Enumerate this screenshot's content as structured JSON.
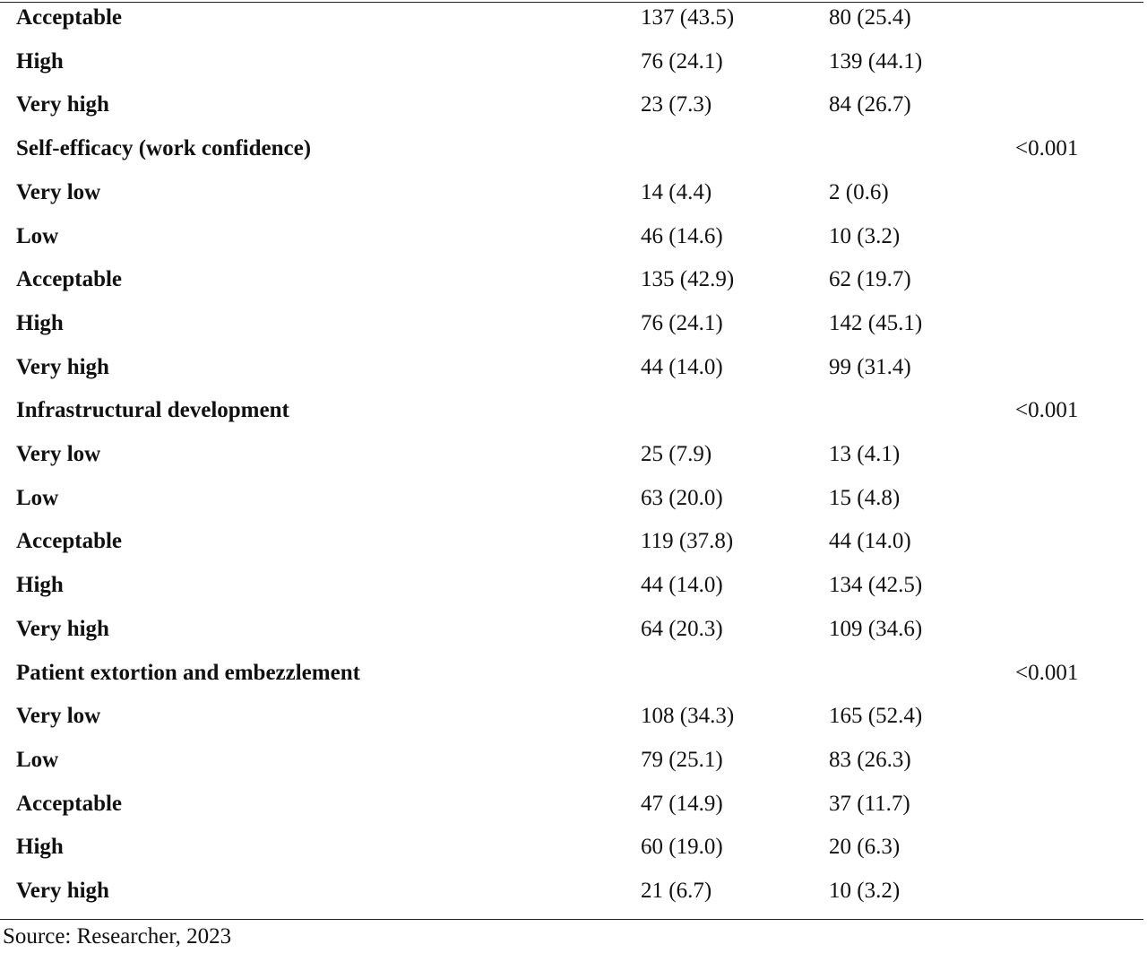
{
  "table": {
    "rows": [
      {
        "label": "Acceptable",
        "col1": "137 (43.5)",
        "col2": "80 (25.4)",
        "p": ""
      },
      {
        "label": "High",
        "col1": "76 (24.1)",
        "col2": "139 (44.1)",
        "p": ""
      },
      {
        "label": "Very high",
        "col1": "23 (7.3)",
        "col2": "84 (26.7)",
        "p": ""
      },
      {
        "label": "Self-efficacy (work confidence)",
        "col1": "",
        "col2": "",
        "p": "<0.001"
      },
      {
        "label": "Very low",
        "col1": "14 (4.4)",
        "col2": "2 (0.6)",
        "p": ""
      },
      {
        "label": "Low",
        "col1": "46 (14.6)",
        "col2": "10 (3.2)",
        "p": ""
      },
      {
        "label": "Acceptable",
        "col1": "135 (42.9)",
        "col2": "62 (19.7)",
        "p": ""
      },
      {
        "label": "High",
        "col1": "76 (24.1)",
        "col2": "142 (45.1)",
        "p": ""
      },
      {
        "label": "Very high",
        "col1": "44 (14.0)",
        "col2": "99 (31.4)",
        "p": ""
      },
      {
        "label": "Infrastructural development",
        "col1": "",
        "col2": "",
        "p": "<0.001"
      },
      {
        "label": "Very low",
        "col1": "25 (7.9)",
        "col2": "13 (4.1)",
        "p": ""
      },
      {
        "label": "Low",
        "col1": "63 (20.0)",
        "col2": "15 (4.8)",
        "p": ""
      },
      {
        "label": "Acceptable",
        "col1": "119 (37.8)",
        "col2": "44 (14.0)",
        "p": ""
      },
      {
        "label": "High",
        "col1": "44 (14.0)",
        "col2": "134 (42.5)",
        "p": ""
      },
      {
        "label": "Very high",
        "col1": "64 (20.3)",
        "col2": "109 (34.6)",
        "p": ""
      },
      {
        "label": "Patient extortion and embezzlement",
        "col1": "",
        "col2": "",
        "p": "<0.001"
      },
      {
        "label": "Very low",
        "col1": "108 (34.3)",
        "col2": "165 (52.4)",
        "p": ""
      },
      {
        "label": "Low",
        "col1": "79 (25.1)",
        "col2": "83 (26.3)",
        "p": ""
      },
      {
        "label": "Acceptable",
        "col1": "47 (14.9)",
        "col2": "37 (11.7)",
        "p": ""
      },
      {
        "label": "High",
        "col1": "60 (19.0)",
        "col2": "20 (6.3)",
        "p": ""
      },
      {
        "label": "Very high",
        "col1": "21 (6.7)",
        "col2": "10 (3.2)",
        "p": ""
      }
    ]
  },
  "footer": {
    "source": "Source: Researcher, 2023"
  }
}
